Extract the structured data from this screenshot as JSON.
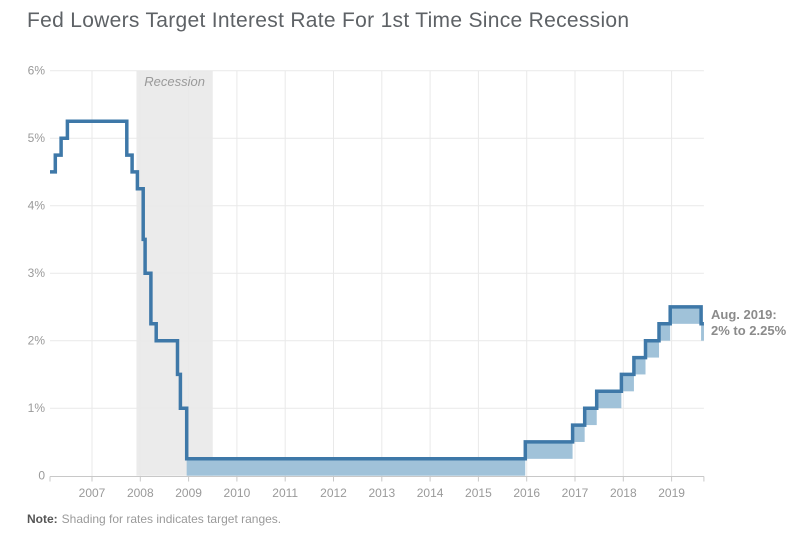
{
  "title": "Fed Lowers Target Interest Rate For 1st Time Since Recession",
  "annotation": {
    "line1": "Aug. 2019:",
    "line2": "2% to 2.25%"
  },
  "note": {
    "label": "Note:",
    "text": "Shading for rates indicates target ranges."
  },
  "colors": {
    "line": "#3e78a8",
    "range_fill": "#a0c2d9",
    "recession_fill": "#ebebeb",
    "grid": "#e9e9e9",
    "axis": "#c8c8c8",
    "tick_text": "#9a9a9a",
    "title_text": "#5e6266",
    "annotation_text": "#8b8b8b",
    "note_label_text": "#555555",
    "note_text": "#9a9a9a",
    "recession_label_text": "#9a9a9a"
  },
  "chart_data": {
    "type": "line",
    "style": "step-range",
    "title": "Fed Lowers Target Interest Rate For 1st Time Since Recession",
    "xlabel": "",
    "ylabel": "",
    "x_domain": [
      2006.13,
      2019.67
    ],
    "y_domain": [
      0,
      6
    ],
    "grid": true,
    "x_ticks": [
      2007,
      2008,
      2009,
      2010,
      2011,
      2012,
      2013,
      2014,
      2015,
      2016,
      2017,
      2018,
      2019
    ],
    "y_ticks": [
      {
        "value": 6,
        "label": "6%"
      },
      {
        "value": 5,
        "label": "5%"
      },
      {
        "value": 4,
        "label": "4%"
      },
      {
        "value": 3,
        "label": "3%"
      },
      {
        "value": 2,
        "label": "2%"
      },
      {
        "value": 1,
        "label": "1%"
      },
      {
        "value": 0,
        "label": "0"
      }
    ],
    "recession": {
      "start": 2007.92,
      "end": 2009.5,
      "label": "Recession"
    },
    "end_date": 2019.67,
    "segments": [
      {
        "date": 2006.13,
        "upper": 4.5,
        "lower": 4.5
      },
      {
        "date": 2006.24,
        "upper": 4.75,
        "lower": 4.75
      },
      {
        "date": 2006.36,
        "upper": 5.0,
        "lower": 5.0
      },
      {
        "date": 2006.49,
        "upper": 5.25,
        "lower": 5.25
      },
      {
        "date": 2007.72,
        "upper": 4.75,
        "lower": 4.75
      },
      {
        "date": 2007.83,
        "upper": 4.5,
        "lower": 4.5
      },
      {
        "date": 2007.94,
        "upper": 4.25,
        "lower": 4.25
      },
      {
        "date": 2008.06,
        "upper": 3.5,
        "lower": 3.5
      },
      {
        "date": 2008.1,
        "upper": 3.0,
        "lower": 3.0
      },
      {
        "date": 2008.22,
        "upper": 2.25,
        "lower": 2.25
      },
      {
        "date": 2008.33,
        "upper": 2.0,
        "lower": 2.0
      },
      {
        "date": 2008.77,
        "upper": 1.5,
        "lower": 1.5
      },
      {
        "date": 2008.83,
        "upper": 1.0,
        "lower": 1.0
      },
      {
        "date": 2008.96,
        "upper": 0.25,
        "lower": 0.0
      },
      {
        "date": 2015.97,
        "upper": 0.5,
        "lower": 0.25
      },
      {
        "date": 2016.95,
        "upper": 0.75,
        "lower": 0.5
      },
      {
        "date": 2017.2,
        "upper": 1.0,
        "lower": 0.75
      },
      {
        "date": 2017.45,
        "upper": 1.25,
        "lower": 1.0
      },
      {
        "date": 2017.96,
        "upper": 1.5,
        "lower": 1.25
      },
      {
        "date": 2018.22,
        "upper": 1.75,
        "lower": 1.5
      },
      {
        "date": 2018.46,
        "upper": 2.0,
        "lower": 1.75
      },
      {
        "date": 2018.74,
        "upper": 2.25,
        "lower": 2.0
      },
      {
        "date": 2018.97,
        "upper": 2.5,
        "lower": 2.25
      },
      {
        "date": 2019.61,
        "upper": 2.25,
        "lower": 2.0
      }
    ]
  }
}
